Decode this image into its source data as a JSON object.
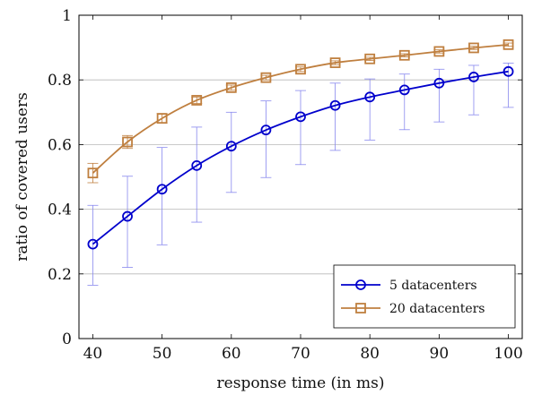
{
  "chart_data": {
    "type": "line",
    "title": "",
    "xlabel": "response time (in ms)",
    "ylabel": "ratio of covered users",
    "xlim": [
      38,
      102
    ],
    "ylim": [
      0,
      1
    ],
    "x_ticks": [
      "40",
      "50",
      "60",
      "70",
      "80",
      "90",
      "100"
    ],
    "y_ticks": [
      "0",
      "0.2",
      "0.4",
      "0.6",
      "0.8",
      "1"
    ],
    "grid": "horizontal",
    "legend_position": "bottom-right",
    "x": [
      40,
      45,
      50,
      55,
      60,
      65,
      70,
      75,
      80,
      85,
      90,
      95,
      100
    ],
    "series": [
      {
        "name": "5 datacenters",
        "marker": "circle",
        "color": "#0000cc",
        "errorbar_color": "#8888ee",
        "values": [
          0.292,
          0.378,
          0.462,
          0.535,
          0.595,
          0.645,
          0.686,
          0.721,
          0.747,
          0.769,
          0.79,
          0.809,
          0.826
        ],
        "lower": [
          0.165,
          0.22,
          0.29,
          0.36,
          0.452,
          0.498,
          0.538,
          0.582,
          0.614,
          0.646,
          0.67,
          0.692,
          0.715
        ],
        "upper": [
          0.412,
          0.502,
          0.591,
          0.654,
          0.7,
          0.735,
          0.767,
          0.79,
          0.803,
          0.818,
          0.833,
          0.845,
          0.852
        ]
      },
      {
        "name": "20 datacenters",
        "marker": "square",
        "color": "#bf7f3f",
        "errorbar_color": "#bf7f3f",
        "values": [
          0.512,
          0.608,
          0.681,
          0.737,
          0.776,
          0.807,
          0.833,
          0.853,
          0.865,
          0.876,
          0.888,
          0.899,
          0.909
        ],
        "lower": [
          0.482,
          0.588,
          0.666,
          0.727,
          0.768,
          0.8,
          0.826,
          0.847,
          0.86,
          0.871,
          0.883,
          0.894,
          0.904
        ],
        "upper": [
          0.542,
          0.628,
          0.696,
          0.747,
          0.784,
          0.814,
          0.84,
          0.859,
          0.87,
          0.881,
          0.893,
          0.904,
          0.914
        ]
      }
    ]
  }
}
